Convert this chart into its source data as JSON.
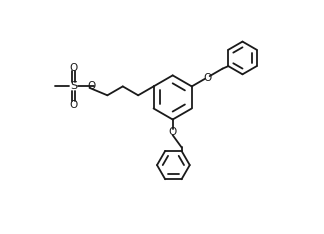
{
  "background_color": "#ffffff",
  "line_color": "#1a1a1a",
  "line_width": 1.3,
  "figsize": [
    3.24,
    2.34
  ],
  "dpi": 100,
  "xlim": [
    0.0,
    9.0
  ],
  "ylim": [
    0.0,
    6.5
  ]
}
